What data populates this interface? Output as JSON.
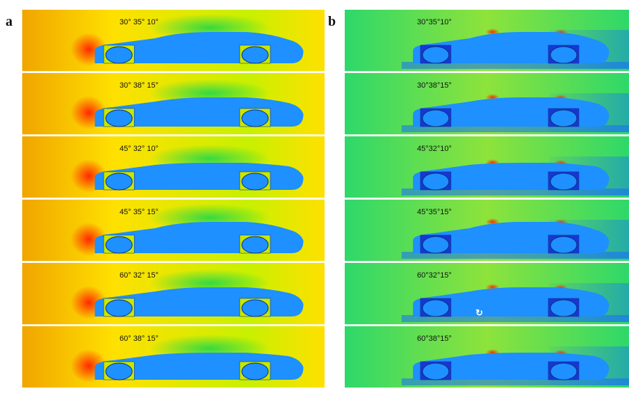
{
  "panels": [
    {
      "label": "a",
      "tiles": [
        {
          "caption": "30° 35° 10°"
        },
        {
          "caption": "30° 38° 15°"
        },
        {
          "caption": "45° 32° 10°"
        },
        {
          "caption": "45° 35° 15°"
        },
        {
          "caption": "60° 32° 15°"
        },
        {
          "caption": "60° 38° 15°"
        }
      ]
    },
    {
      "label": "b",
      "tiles": [
        {
          "caption": "30°35°10°"
        },
        {
          "caption": "30°38°15°"
        },
        {
          "caption": "45°32°10°"
        },
        {
          "caption": "45°35°15°"
        },
        {
          "caption": "60°32°15°"
        },
        {
          "caption": "60°38°15°"
        }
      ]
    }
  ],
  "colors": {
    "pressure_field": [
      "#f0a500",
      "#ffe000",
      "#c8f000",
      "#22d84a"
    ],
    "velocity_field": [
      "#2ed86a",
      "#8ee33b",
      "#1a6cff"
    ],
    "car_body": "#1e90ff",
    "wheel_well_a": "#c9e800",
    "wheel_well_b": "#1836d6",
    "stagnation_red": "#ff2a00"
  }
}
